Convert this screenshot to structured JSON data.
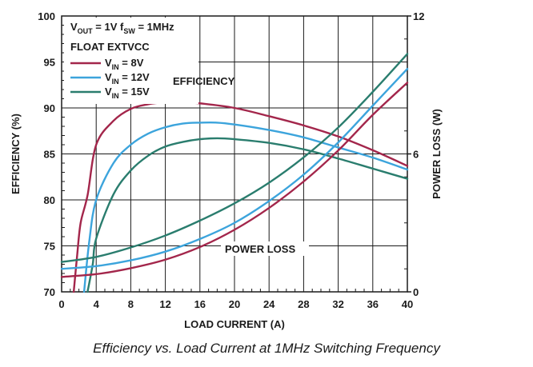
{
  "caption": "Efficiency vs. Load Current at 1MHz Switching Frequency",
  "chart_data": {
    "type": "line",
    "xlabel": "LOAD CURRENT (A)",
    "ylabel": "EFFICIENCY (%)",
    "y2label": "POWER LOSS (W)",
    "xlim": [
      0,
      40
    ],
    "ylim": [
      70,
      100
    ],
    "y2lim": [
      0,
      12
    ],
    "xticks": [
      "0",
      "4",
      "8",
      "12",
      "16",
      "20",
      "24",
      "28",
      "32",
      "36",
      "40"
    ],
    "yticks": [
      "70",
      "75",
      "80",
      "85",
      "90",
      "95",
      "100"
    ],
    "y2ticks": [
      "0",
      "6",
      "12"
    ],
    "grid": true,
    "conditions": {
      "line1_main": "V",
      "line1_sub1": "OUT",
      "line1_mid": " = 1V f",
      "line1_sub2": "SW",
      "line1_end": " = 1MHz",
      "line2": "FLOAT EXTVCC"
    },
    "annotations": {
      "efficiency": "EFFICIENCY",
      "power_loss": "POWER LOSS"
    },
    "legend": {
      "placement": "top-left",
      "entries": [
        {
          "main": "V",
          "sub": "IN",
          "rest": " = 8V",
          "color": "#a3264b"
        },
        {
          "main": "V",
          "sub": "IN",
          "rest": " = 12V",
          "color": "#3ca4dc"
        },
        {
          "main": "V",
          "sub": "IN",
          "rest": " = 15V",
          "color": "#2a7d6e"
        }
      ]
    },
    "series": [
      {
        "kind": "efficiency",
        "axis": "left",
        "color": "#a3264b",
        "x": [
          1.4,
          1.8,
          2.2,
          3,
          4,
          6,
          8,
          10,
          12,
          14,
          16,
          20,
          24,
          28,
          32,
          36,
          40
        ],
        "y": [
          70,
          74,
          77.5,
          80.5,
          86,
          88.6,
          89.9,
          90.4,
          90.6,
          90.6,
          90.5,
          90,
          89.1,
          88.1,
          86.9,
          85.4,
          83.7
        ]
      },
      {
        "kind": "efficiency",
        "axis": "left",
        "color": "#3ca4dc",
        "x": [
          2.6,
          3.2,
          4,
          6,
          8,
          10,
          12,
          14,
          16,
          18,
          20,
          24,
          28,
          32,
          36,
          40
        ],
        "y": [
          70,
          75.5,
          80,
          84,
          86,
          87.2,
          87.9,
          88.3,
          88.4,
          88.4,
          88.2,
          87.6,
          86.8,
          85.7,
          84.6,
          83.3
        ]
      },
      {
        "kind": "efficiency",
        "axis": "left",
        "color": "#2a7d6e",
        "x": [
          3,
          3.6,
          4,
          6,
          8,
          10,
          12,
          14,
          16,
          18,
          20,
          24,
          28,
          32,
          36,
          40
        ],
        "y": [
          70,
          73,
          75.8,
          80.6,
          83.2,
          84.8,
          85.8,
          86.3,
          86.6,
          86.7,
          86.6,
          86.2,
          85.5,
          84.5,
          83.4,
          82.3
        ]
      },
      {
        "kind": "power_loss",
        "axis": "right",
        "color": "#a3264b",
        "x": [
          0,
          4,
          8,
          12,
          16,
          20,
          24,
          28,
          32,
          36,
          40
        ],
        "y": [
          0.65,
          0.77,
          1.03,
          1.4,
          1.95,
          2.7,
          3.65,
          4.8,
          6.15,
          7.7,
          9.1
        ]
      },
      {
        "kind": "power_loss",
        "axis": "right",
        "color": "#3ca4dc",
        "x": [
          0,
          4,
          8,
          12,
          16,
          20,
          24,
          28,
          32,
          36,
          40
        ],
        "y": [
          1.0,
          1.12,
          1.37,
          1.75,
          2.3,
          3.0,
          3.95,
          5.1,
          6.5,
          8.1,
          9.7
        ]
      },
      {
        "kind": "power_loss",
        "axis": "right",
        "color": "#2a7d6e",
        "x": [
          0,
          4,
          8,
          12,
          16,
          20,
          24,
          28,
          32,
          36,
          40
        ],
        "y": [
          1.3,
          1.52,
          1.93,
          2.45,
          3.1,
          3.85,
          4.75,
          5.85,
          7.15,
          8.7,
          10.35
        ]
      }
    ]
  }
}
